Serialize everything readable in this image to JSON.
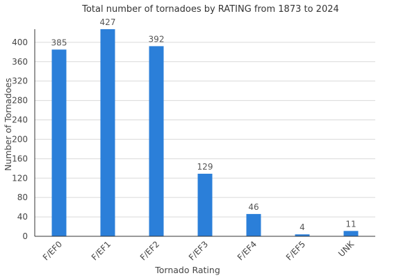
{
  "chart_data": {
    "type": "bar",
    "title": "Total number of tornadoes by RATING from 1873 to 2024",
    "xlabel": "Tornado Rating",
    "ylabel": "Number of Tornadoes",
    "categories": [
      "F/EF0",
      "F/EF1",
      "F/EF2",
      "F/EF3",
      "F/EF4",
      "F/EF5",
      "UNK"
    ],
    "values": [
      385,
      427,
      392,
      129,
      46,
      4,
      11
    ],
    "ylim": [
      0,
      427
    ],
    "yticks": [
      0,
      40,
      80,
      120,
      160,
      200,
      240,
      280,
      320,
      360,
      400
    ],
    "grid": true,
    "legend": "none",
    "bar_color": "#2b7fd9"
  }
}
